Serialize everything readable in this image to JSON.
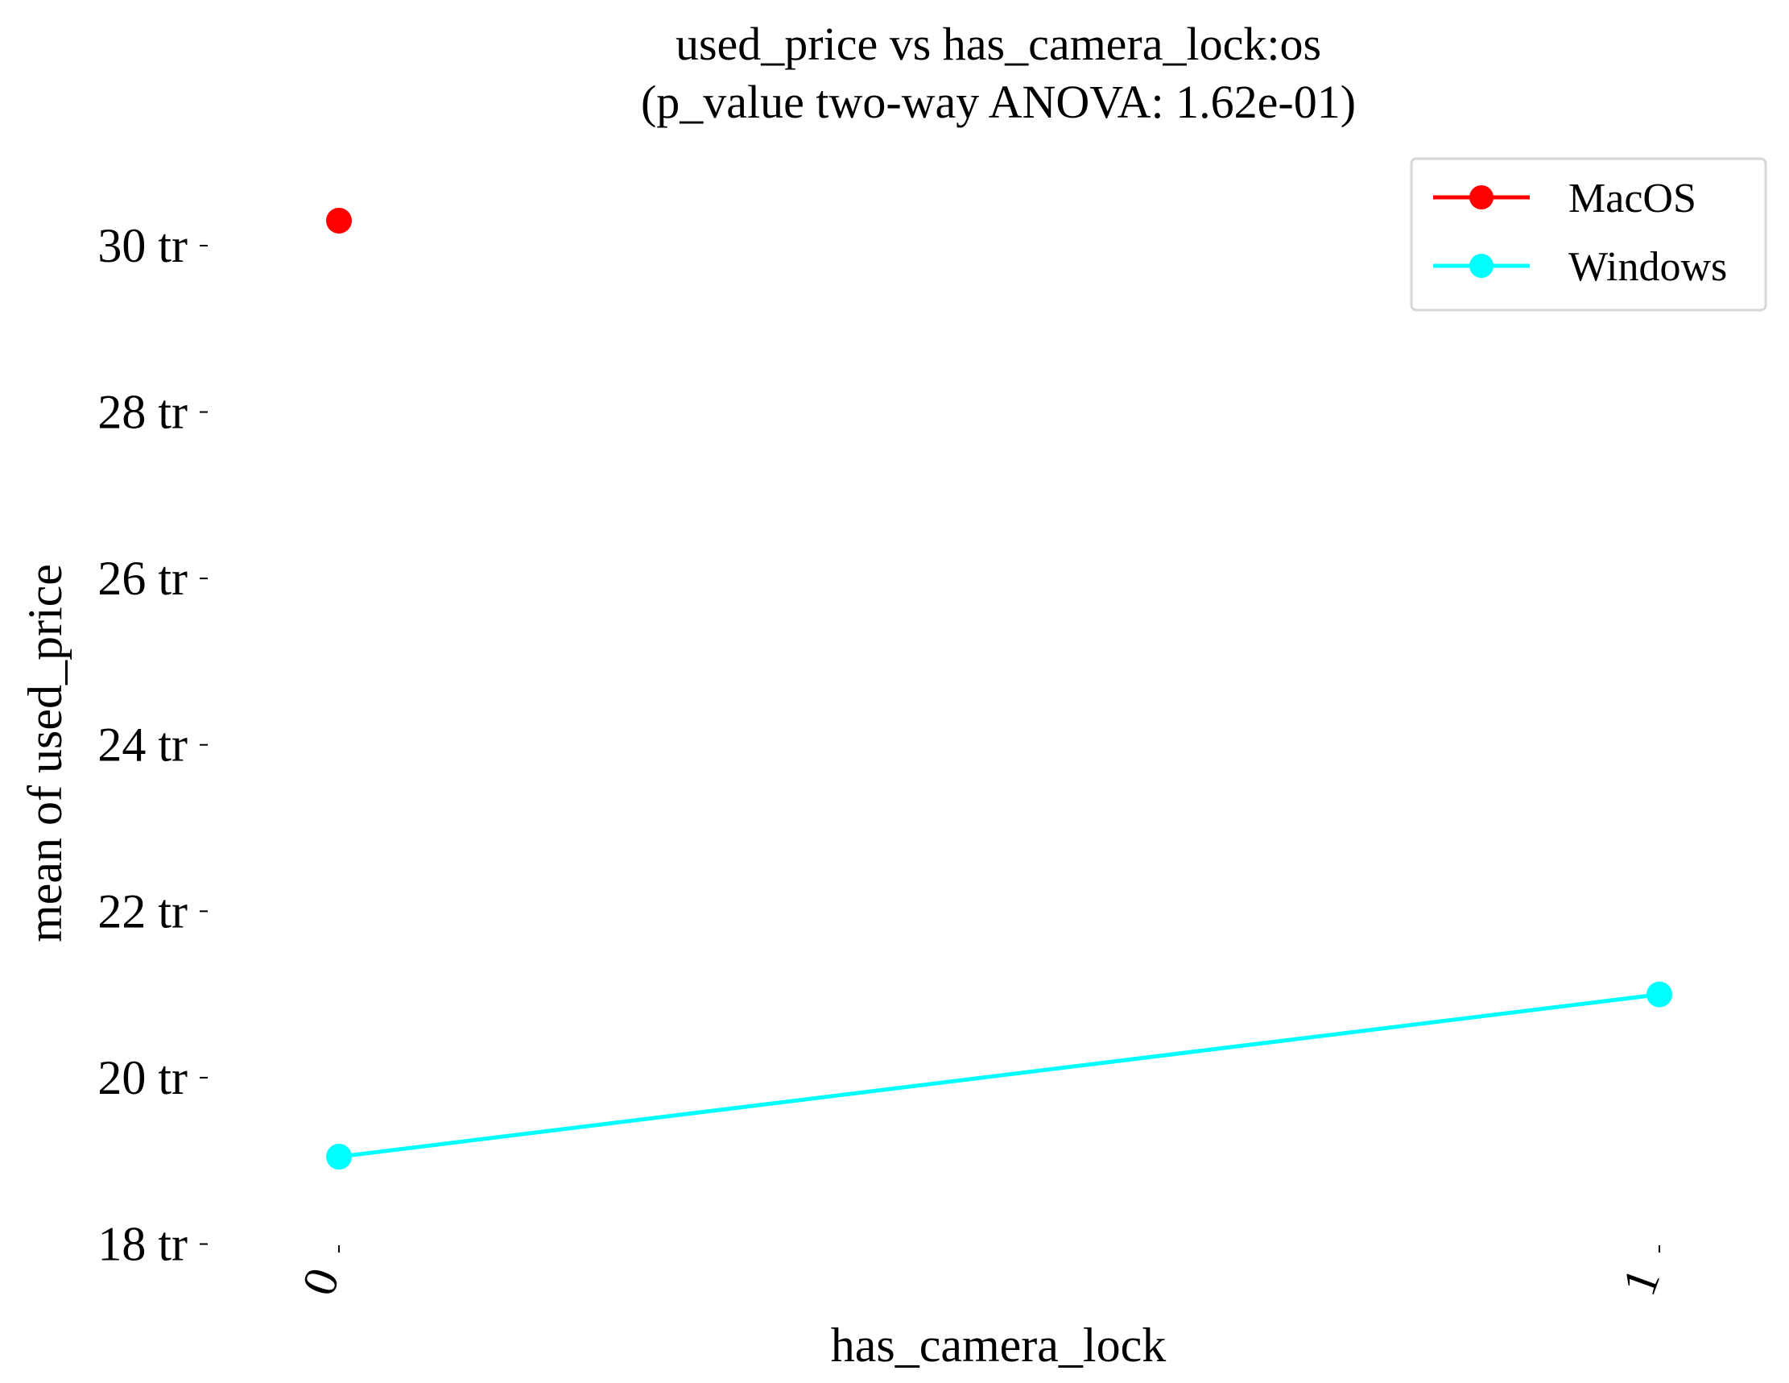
{
  "chart_data": {
    "type": "line",
    "title": "used_price vs has_camera_lock:os",
    "subtitle": "(p_value two-way ANOVA: 1.62e-01)",
    "xlabel": "has_camera_lock",
    "ylabel": "mean of used_price",
    "categories": [
      "0",
      "1"
    ],
    "y_ticks": [
      18,
      20,
      22,
      24,
      26,
      28,
      30
    ],
    "y_tick_labels": [
      "18 tr",
      "20 tr",
      "22 tr",
      "24 tr",
      "26 tr",
      "28 tr",
      "30 tr"
    ],
    "ylim": [
      17.85,
      31.5
    ],
    "y_unit": "tr",
    "grid": false,
    "legend_position": "top-right",
    "series": [
      {
        "name": "MacOS",
        "color": "#ff0000",
        "values": [
          30.3,
          null
        ]
      },
      {
        "name": "Windows",
        "color": "#00ffff",
        "values": [
          19.05,
          21.0
        ]
      }
    ]
  }
}
